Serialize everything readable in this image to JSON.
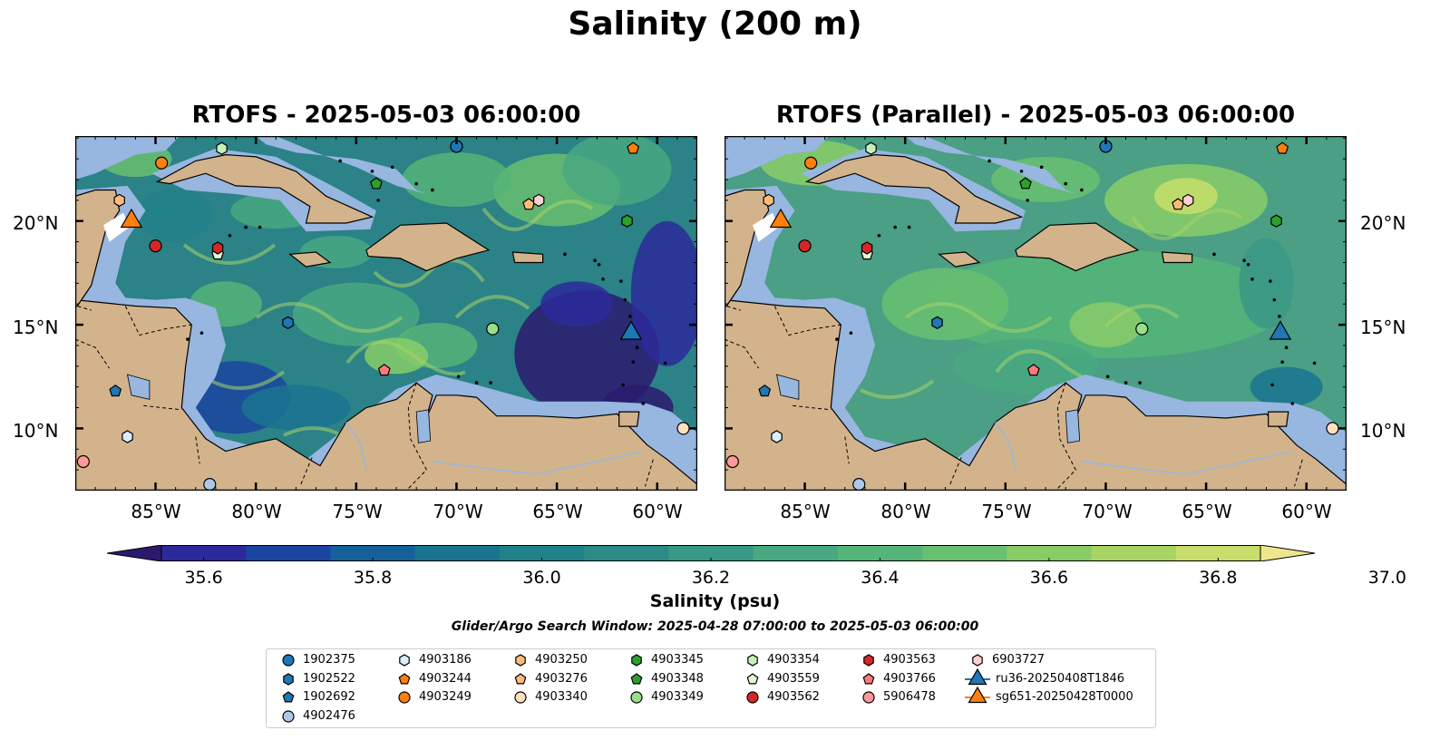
{
  "title": "Salinity (200 m)",
  "panels": [
    {
      "title": "RTOFS - 2025-05-03 06:00:00"
    },
    {
      "title": "RTOFS (Parallel) - 2025-05-03 06:00:00"
    }
  ],
  "x_ticks": [
    "85°W",
    "80°W",
    "75°W",
    "70°W",
    "65°W",
    "60°W"
  ],
  "y_ticks": [
    "20°N",
    "15°N",
    "10°N"
  ],
  "colorbar": {
    "label": "Salinity (psu)",
    "ticks": [
      "35.6",
      "35.8",
      "36.0",
      "36.2",
      "36.4",
      "36.6",
      "36.8",
      "37.0"
    ],
    "colors": [
      "#2a1a6e",
      "#2c2a9a",
      "#1a45a0",
      "#15609a",
      "#1a7490",
      "#21818a",
      "#2e8a86",
      "#3a9886",
      "#48a880",
      "#55b478",
      "#68c070",
      "#88cc68",
      "#a8d466",
      "#c8de6a",
      "#eee68e"
    ]
  },
  "search_window": "Glider/Argo Search Window: 2025-04-28 07:00:00 to 2025-05-03 06:00:00",
  "legend": [
    {
      "label": "1902375",
      "shape": "circle",
      "color": "#1f77b4"
    },
    {
      "label": "1902522",
      "shape": "hexagon",
      "color": "#1f77b4"
    },
    {
      "label": "1902692",
      "shape": "pentagon",
      "color": "#1f77b4"
    },
    {
      "label": "4902476",
      "shape": "circle",
      "color": "#aec7e8"
    },
    {
      "label": "4903186",
      "shape": "hexagon",
      "color": "#d6effa"
    },
    {
      "label": "4903244",
      "shape": "pentagon",
      "color": "#ff7f0e"
    },
    {
      "label": "4903249",
      "shape": "circle",
      "color": "#ff7f0e"
    },
    {
      "label": "4903250",
      "shape": "hexagon",
      "color": "#ffbb78"
    },
    {
      "label": "4903276",
      "shape": "pentagon",
      "color": "#ffbb78"
    },
    {
      "label": "4903340",
      "shape": "circle",
      "color": "#ffe0c0"
    },
    {
      "label": "4903345",
      "shape": "hexagon",
      "color": "#2ca02c"
    },
    {
      "label": "4903348",
      "shape": "pentagon",
      "color": "#2ca02c"
    },
    {
      "label": "4903349",
      "shape": "circle",
      "color": "#98df8a"
    },
    {
      "label": "4903354",
      "shape": "hexagon",
      "color": "#c7f0b8"
    },
    {
      "label": "4903559",
      "shape": "pentagon",
      "color": "#e2f7d6"
    },
    {
      "label": "4903562",
      "shape": "circle",
      "color": "#d62728"
    },
    {
      "label": "4903563",
      "shape": "hexagon",
      "color": "#d62728"
    },
    {
      "label": "4903766",
      "shape": "pentagon",
      "color": "#ff7b7b"
    },
    {
      "label": "5906478",
      "shape": "circle",
      "color": "#ff9896"
    },
    {
      "label": "6903727",
      "shape": "hexagon",
      "color": "#ffd0d0"
    },
    {
      "label": "ru36-20250408T1846",
      "shape": "triangle",
      "color": "#1f77b4"
    },
    {
      "label": "sg651-20250428T0000",
      "shape": "triangle",
      "color": "#ff7f0e"
    }
  ],
  "floats": [
    {
      "id": "1902375",
      "lon": -70.0,
      "lat": 23.6,
      "shape": "circle",
      "color": "#1f77b4"
    },
    {
      "id": "1902522",
      "lon": -78.4,
      "lat": 15.1,
      "shape": "hexagon",
      "color": "#1f77b4"
    },
    {
      "id": "1902692",
      "lon": -87.0,
      "lat": 11.8,
      "shape": "pentagon",
      "color": "#1f77b4"
    },
    {
      "id": "4902476",
      "lon": -82.3,
      "lat": 7.3,
      "shape": "circle",
      "color": "#aec7e8"
    },
    {
      "id": "4903186",
      "lon": -86.4,
      "lat": 9.6,
      "shape": "hexagon",
      "color": "#d6effa"
    },
    {
      "id": "4903244",
      "lon": -61.2,
      "lat": 23.5,
      "shape": "pentagon",
      "color": "#ff7f0e"
    },
    {
      "id": "4903249",
      "lon": -84.7,
      "lat": 22.8,
      "shape": "circle",
      "color": "#ff7f0e"
    },
    {
      "id": "4903250",
      "lon": -86.8,
      "lat": 21.0,
      "shape": "hexagon",
      "color": "#ffbb78"
    },
    {
      "id": "4903276",
      "lon": -66.4,
      "lat": 20.8,
      "shape": "pentagon",
      "color": "#ffbb78"
    },
    {
      "id": "4903340",
      "lon": -58.7,
      "lat": 10.0,
      "shape": "circle",
      "color": "#ffe0c0"
    },
    {
      "id": "4903345",
      "lon": -61.5,
      "lat": 20.0,
      "shape": "hexagon",
      "color": "#2ca02c"
    },
    {
      "id": "4903348",
      "lon": -74.0,
      "lat": 21.8,
      "shape": "pentagon",
      "color": "#2ca02c"
    },
    {
      "id": "4903349",
      "lon": -68.2,
      "lat": 14.8,
      "shape": "circle",
      "color": "#98df8a"
    },
    {
      "id": "4903354",
      "lon": -81.7,
      "lat": 23.5,
      "shape": "hexagon",
      "color": "#c7f0b8"
    },
    {
      "id": "4903559",
      "lon": -81.9,
      "lat": 18.4,
      "shape": "pentagon",
      "color": "#e2f7d6"
    },
    {
      "id": "4903562",
      "lon": -85.0,
      "lat": 18.8,
      "shape": "circle",
      "color": "#d62728"
    },
    {
      "id": "4903563",
      "lon": -81.9,
      "lat": 18.7,
      "shape": "hexagon",
      "color": "#d62728"
    },
    {
      "id": "4903766",
      "lon": -73.6,
      "lat": 12.8,
      "shape": "pentagon",
      "color": "#ff7b7b"
    },
    {
      "id": "5906478",
      "lon": -88.6,
      "lat": 8.4,
      "shape": "circle",
      "color": "#ff9896"
    },
    {
      "id": "6903727",
      "lon": -65.9,
      "lat": 21.0,
      "shape": "hexagon",
      "color": "#ffd0d0"
    }
  ],
  "gliders": [
    {
      "id": "ru36-20250408T1846",
      "lon": -61.3,
      "lat": 14.5,
      "color": "#1f77b4"
    },
    {
      "id": "sg651-20250428T0000",
      "lon": -86.2,
      "lat": 19.9,
      "color": "#ff7f0e"
    }
  ]
}
